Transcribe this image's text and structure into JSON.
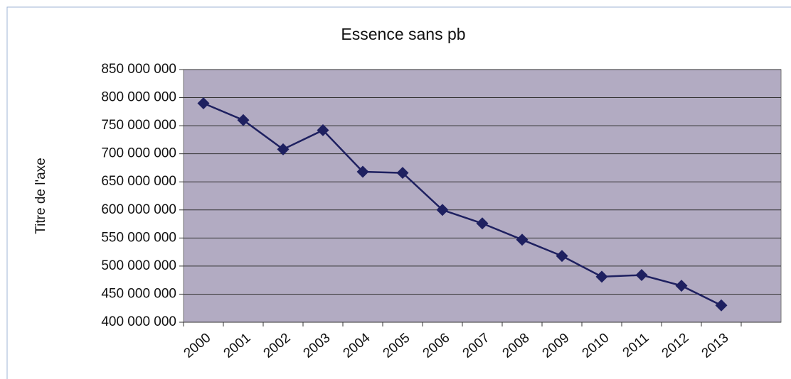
{
  "chart_data": {
    "type": "line",
    "title": "Essence sans pb",
    "y_label": "Titre de l'axe",
    "categories": [
      "2000",
      "2001",
      "2002",
      "2003",
      "2004",
      "2005",
      "2006",
      "2007",
      "2008",
      "2009",
      "2010",
      "2011",
      "2012",
      "2013",
      null
    ],
    "series": [
      {
        "name": "Essence sans pb",
        "color": "#1e2060",
        "values": [
          790000000,
          760000000,
          708000000,
          742000000,
          668000000,
          666000000,
          600000000,
          576000000,
          547000000,
          518000000,
          481000000,
          484000000,
          465000000,
          430000000,
          null
        ]
      }
    ],
    "ylim": [
      400000000,
      850000000
    ],
    "yticks": [
      {
        "value": 400000000,
        "label": "400 000 000"
      },
      {
        "value": 450000000,
        "label": "450 000 000"
      },
      {
        "value": 500000000,
        "label": "500 000 000"
      },
      {
        "value": 550000000,
        "label": "550 000 000"
      },
      {
        "value": 600000000,
        "label": "600 000 000"
      },
      {
        "value": 650000000,
        "label": "650 000 000"
      },
      {
        "value": 700000000,
        "label": "700 000 000"
      },
      {
        "value": 750000000,
        "label": "750 000 000"
      },
      {
        "value": 800000000,
        "label": "800 000 000"
      },
      {
        "value": 850000000,
        "label": "850 000 000"
      }
    ],
    "grid": true
  }
}
